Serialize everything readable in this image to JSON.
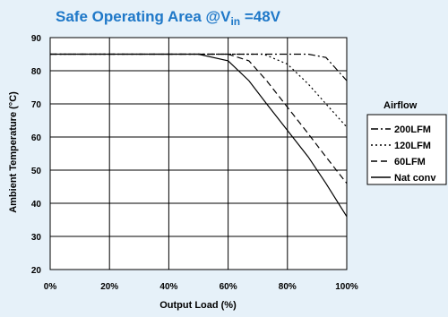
{
  "chart_data": {
    "type": "line",
    "title": "Safe Operating Area @V",
    "title_subscript": "in",
    "title_suffix": " =48V",
    "xlabel": "Output Load (%)",
    "ylabel": "Ambient Temperature (°C)",
    "xlim": [
      0,
      100
    ],
    "ylim": [
      20,
      90
    ],
    "x_ticks": [
      0,
      20,
      40,
      60,
      80,
      100
    ],
    "x_tick_labels": [
      "0%",
      "20%",
      "40%",
      "60%",
      "80%",
      "100%"
    ],
    "y_ticks": [
      20,
      30,
      40,
      50,
      60,
      70,
      80,
      90
    ],
    "y_tick_labels": [
      "20",
      "30",
      "40",
      "50",
      "60",
      "70",
      "80",
      "90"
    ],
    "grid": true,
    "legend_title": "Airflow",
    "legend_position": "right",
    "series": [
      {
        "name": "200LFM",
        "dash": "dashdot",
        "x": [
          0,
          50,
          80,
          87,
          93,
          100
        ],
        "y": [
          85,
          85,
          85,
          85,
          84,
          77
        ]
      },
      {
        "name": "120LFM",
        "dash": "dot",
        "x": [
          0,
          50,
          72,
          80,
          87,
          93,
          100
        ],
        "y": [
          85,
          85,
          85,
          82,
          76,
          70,
          63
        ]
      },
      {
        "name": "60LFM",
        "dash": "dash",
        "x": [
          0,
          50,
          60,
          67,
          73,
          80,
          87,
          93,
          100
        ],
        "y": [
          85,
          85,
          85,
          83,
          77,
          69,
          61,
          54,
          46
        ]
      },
      {
        "name": "Nat conv",
        "dash": "solid",
        "x": [
          0,
          50,
          60,
          67,
          73,
          80,
          87,
          93,
          100
        ],
        "y": [
          85,
          85,
          83,
          77,
          70,
          62,
          54,
          46,
          36
        ]
      }
    ]
  }
}
